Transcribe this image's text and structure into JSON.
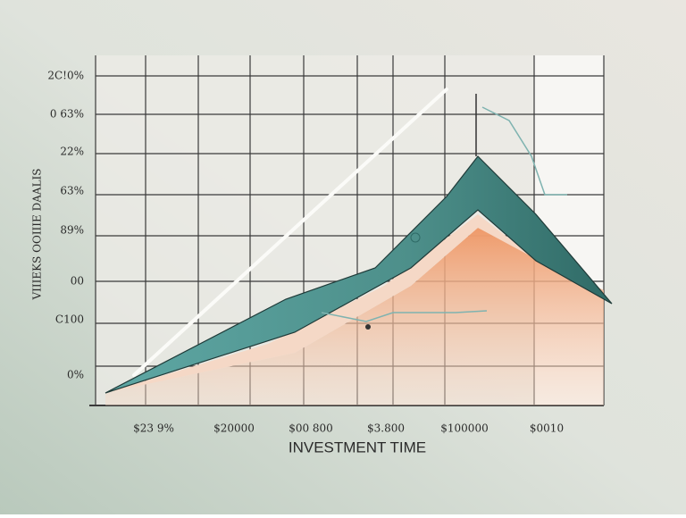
{
  "y_labels": [
    "2C!0%",
    "0  63%",
    "22%",
    "63%",
    "89%",
    "00",
    "C100",
    "0%"
  ],
  "y_axis_title": "VIIIEKS OOIIIE DAALIS",
  "x_labels": [
    "$23 9%",
    "$20000",
    "$00 800",
    "$3.800",
    "$100000",
    "$0010"
  ],
  "x_axis_title": "INVESTMENT TIME"
}
